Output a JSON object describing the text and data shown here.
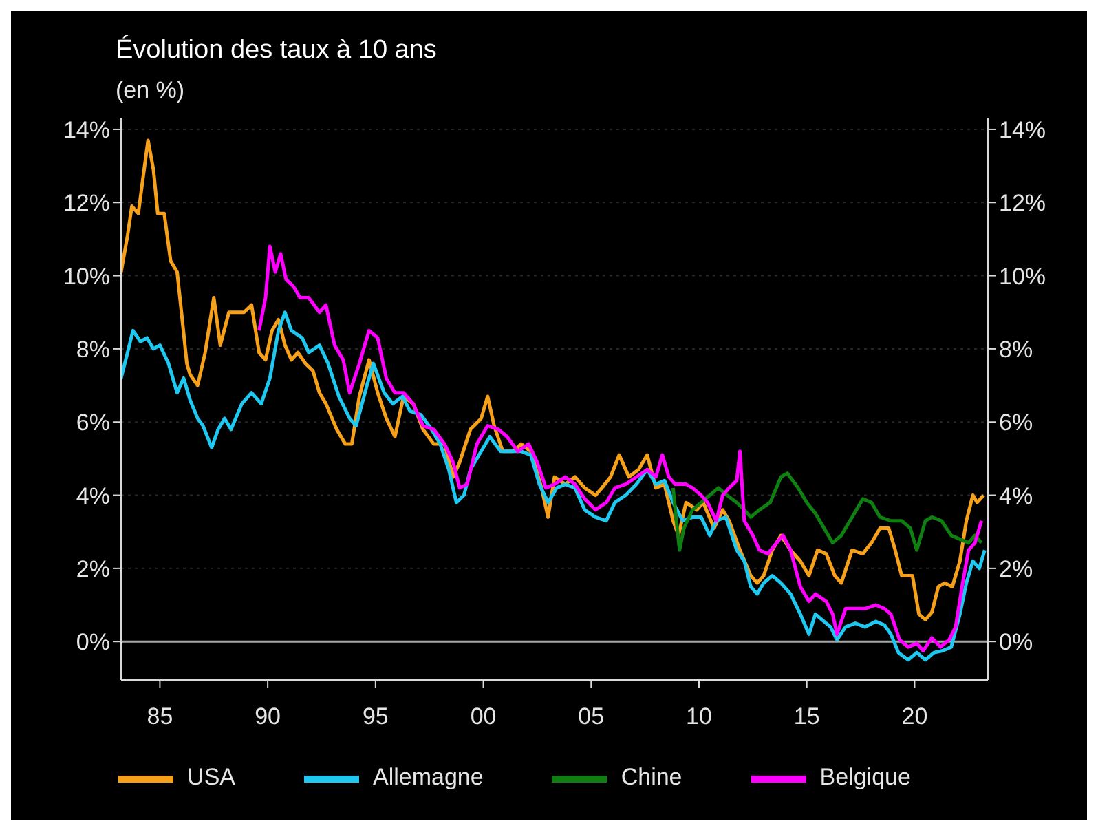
{
  "chart_data": {
    "type": "line",
    "title": "Évolution des taux à 10 ans",
    "subtitle": "(en %)",
    "xlim": [
      1983.2,
      2023.4
    ],
    "xticks": [
      {
        "value": 1985,
        "label": "85"
      },
      {
        "value": 1990,
        "label": "90"
      },
      {
        "value": 1995,
        "label": "95"
      },
      {
        "value": 2000,
        "label": "00"
      },
      {
        "value": 2005,
        "label": "05"
      },
      {
        "value": 2010,
        "label": "10"
      },
      {
        "value": 2015,
        "label": "15"
      },
      {
        "value": 2020,
        "label": "20"
      }
    ],
    "ylim": [
      -1.05,
      14.3
    ],
    "yticks": [
      {
        "value": 0,
        "label": "0%"
      },
      {
        "value": 2,
        "label": "2%"
      },
      {
        "value": 4,
        "label": "4%"
      },
      {
        "value": 6,
        "label": "6%"
      },
      {
        "value": 8,
        "label": "8%"
      },
      {
        "value": 10,
        "label": "10%"
      },
      {
        "value": 12,
        "label": "12%"
      },
      {
        "value": 14,
        "label": "14%"
      }
    ],
    "y2lim": [
      -1.05,
      14.3
    ],
    "y2ticks": [
      {
        "value": 0,
        "label": "0%"
      },
      {
        "value": 2,
        "label": "2%"
      },
      {
        "value": 4,
        "label": "4%"
      },
      {
        "value": 6,
        "label": "6%"
      },
      {
        "value": 8,
        "label": "8%"
      },
      {
        "value": 10,
        "label": "10%"
      },
      {
        "value": 12,
        "label": "12%"
      },
      {
        "value": 14,
        "label": "14%"
      }
    ],
    "grid": "y",
    "legend": "bottom",
    "marker": "none",
    "line_style": "solid",
    "ref_lines": [
      {
        "axis": "y",
        "value": 0,
        "color": "#a6a6a6"
      }
    ],
    "series": [
      {
        "name": "USA",
        "color": "#f7a11a",
        "x": [
          1983.2,
          1983.5,
          1983.7,
          1984.0,
          1984.2,
          1984.45,
          1984.7,
          1984.9,
          1985.2,
          1985.5,
          1985.8,
          1986.0,
          1986.25,
          1986.4,
          1986.75,
          1987.1,
          1987.5,
          1987.8,
          1988.2,
          1988.6,
          1988.9,
          1989.25,
          1989.6,
          1989.9,
          1990.2,
          1990.5,
          1990.8,
          1991.1,
          1991.4,
          1991.75,
          1992.1,
          1992.4,
          1992.7,
          1993.2,
          1993.6,
          1993.9,
          1994.25,
          1994.7,
          1995.1,
          1995.5,
          1995.9,
          1996.3,
          1996.75,
          1997.2,
          1997.7,
          1998.2,
          1998.6,
          1998.9,
          1999.4,
          1999.9,
          2000.2,
          2000.5,
          2000.9,
          2001.4,
          2001.75,
          2002.2,
          2002.7,
          2003.0,
          2003.3,
          2003.8,
          2004.25,
          2004.7,
          2005.2,
          2005.5,
          2005.9,
          2006.3,
          2006.75,
          2007.2,
          2007.6,
          2008.0,
          2008.4,
          2008.8,
          2009.05,
          2009.4,
          2009.9,
          2010.2,
          2010.7,
          2011.1,
          2011.4,
          2011.9,
          2012.4,
          2012.7,
          2013.0,
          2013.4,
          2013.8,
          2014.25,
          2014.7,
          2015.1,
          2015.5,
          2015.9,
          2016.3,
          2016.6,
          2017.1,
          2017.6,
          2018.0,
          2018.4,
          2018.8,
          2019.1,
          2019.4,
          2019.9,
          2020.2,
          2020.5,
          2020.8,
          2021.1,
          2021.4,
          2021.75,
          2022.1,
          2022.4,
          2022.7,
          2022.9,
          2023.2
        ],
        "values": [
          10.1,
          11.1,
          11.9,
          11.7,
          12.6,
          13.7,
          12.9,
          11.7,
          11.7,
          10.4,
          10.1,
          9.0,
          7.6,
          7.3,
          7.0,
          7.9,
          9.4,
          8.1,
          9.0,
          9.0,
          9.0,
          9.2,
          7.9,
          7.7,
          8.5,
          8.8,
          8.1,
          7.7,
          7.9,
          7.6,
          7.4,
          6.8,
          6.5,
          5.8,
          5.4,
          5.4,
          6.7,
          7.7,
          6.8,
          6.1,
          5.6,
          6.7,
          6.5,
          5.8,
          5.4,
          5.4,
          4.5,
          4.9,
          5.8,
          6.1,
          6.7,
          5.9,
          5.2,
          5.2,
          5.4,
          5.2,
          4.2,
          3.4,
          4.5,
          4.3,
          4.5,
          4.2,
          4.0,
          4.2,
          4.5,
          5.1,
          4.5,
          4.7,
          5.1,
          4.2,
          4.3,
          3.3,
          2.9,
          3.8,
          3.6,
          3.8,
          3.1,
          3.6,
          3.3,
          2.5,
          1.8,
          1.6,
          1.8,
          2.5,
          2.9,
          2.5,
          2.2,
          1.8,
          2.5,
          2.4,
          1.8,
          1.6,
          2.5,
          2.4,
          2.7,
          3.1,
          3.1,
          2.5,
          1.8,
          1.8,
          0.75,
          0.6,
          0.8,
          1.5,
          1.6,
          1.5,
          2.2,
          3.3,
          4.0,
          3.8,
          4.0
        ]
      },
      {
        "name": "Allemagne",
        "color": "#1fc8f0",
        "x": [
          1983.2,
          1983.5,
          1983.75,
          1984.1,
          1984.4,
          1984.7,
          1985.0,
          1985.4,
          1985.8,
          1986.1,
          1986.4,
          1986.75,
          1987.0,
          1987.4,
          1987.7,
          1988.0,
          1988.3,
          1988.8,
          1989.25,
          1989.7,
          1990.1,
          1990.5,
          1990.8,
          1991.1,
          1991.6,
          1991.9,
          1992.4,
          1992.8,
          1993.3,
          1993.8,
          1994.1,
          1994.6,
          1994.9,
          1995.4,
          1995.8,
          1996.25,
          1996.6,
          1997.1,
          1997.6,
          1998.0,
          1998.4,
          1998.75,
          1999.1,
          1999.4,
          1999.9,
          2000.3,
          2000.8,
          2001.3,
          2001.75,
          2002.2,
          2002.6,
          2003.0,
          2003.4,
          2003.8,
          2004.25,
          2004.7,
          2005.2,
          2005.7,
          2006.1,
          2006.6,
          2007.1,
          2007.6,
          2008.0,
          2008.4,
          2008.8,
          2009.25,
          2009.7,
          2010.1,
          2010.5,
          2010.8,
          2011.25,
          2011.75,
          2012.1,
          2012.4,
          2012.7,
          2013.0,
          2013.4,
          2013.8,
          2014.25,
          2014.7,
          2015.1,
          2015.4,
          2015.7,
          2016.1,
          2016.4,
          2016.8,
          2017.25,
          2017.7,
          2018.2,
          2018.6,
          2018.9,
          2019.25,
          2019.7,
          2020.1,
          2020.5,
          2020.9,
          2021.3,
          2021.7,
          2022.1,
          2022.4,
          2022.7,
          2023.0,
          2023.25
        ],
        "values": [
          7.2,
          7.9,
          8.5,
          8.2,
          8.3,
          8.0,
          8.1,
          7.6,
          6.8,
          7.2,
          6.6,
          6.1,
          5.9,
          5.3,
          5.8,
          6.1,
          5.8,
          6.5,
          6.8,
          6.5,
          7.2,
          8.5,
          9.0,
          8.5,
          8.3,
          7.9,
          8.1,
          7.6,
          6.7,
          6.1,
          5.9,
          7.0,
          7.6,
          6.8,
          6.5,
          6.7,
          6.3,
          6.2,
          5.8,
          5.4,
          4.7,
          3.8,
          4.0,
          4.7,
          5.2,
          5.6,
          5.2,
          5.2,
          5.2,
          5.1,
          4.3,
          3.8,
          4.2,
          4.3,
          4.2,
          3.6,
          3.4,
          3.3,
          3.8,
          4.0,
          4.3,
          4.7,
          4.3,
          4.4,
          3.8,
          3.3,
          3.4,
          3.4,
          2.9,
          3.3,
          3.4,
          2.5,
          2.2,
          1.5,
          1.3,
          1.6,
          1.8,
          1.6,
          1.3,
          0.75,
          0.2,
          0.75,
          0.6,
          0.4,
          0.05,
          0.4,
          0.5,
          0.4,
          0.55,
          0.45,
          0.2,
          -0.3,
          -0.5,
          -0.3,
          -0.5,
          -0.3,
          -0.25,
          -0.15,
          0.75,
          1.6,
          2.2,
          2.0,
          2.5
        ]
      },
      {
        "name": "Chine",
        "color": "#0f7f12",
        "x": [
          2008.8,
          2008.95,
          2009.1,
          2009.3,
          2009.7,
          2010.1,
          2010.5,
          2010.9,
          2011.3,
          2011.75,
          2012.1,
          2012.4,
          2012.8,
          2013.3,
          2013.8,
          2014.1,
          2014.6,
          2015.0,
          2015.4,
          2015.8,
          2016.2,
          2016.6,
          2017.1,
          2017.6,
          2018.0,
          2018.4,
          2018.9,
          2019.4,
          2019.8,
          2020.1,
          2020.5,
          2020.8,
          2021.25,
          2021.7,
          2022.1,
          2022.5,
          2022.8,
          2023.1
        ],
        "values": [
          4.2,
          3.3,
          2.5,
          3.1,
          3.6,
          3.8,
          4.0,
          4.2,
          4.0,
          3.8,
          3.6,
          3.4,
          3.6,
          3.8,
          4.5,
          4.6,
          4.2,
          3.8,
          3.5,
          3.1,
          2.7,
          2.9,
          3.4,
          3.9,
          3.8,
          3.4,
          3.3,
          3.3,
          3.1,
          2.5,
          3.3,
          3.4,
          3.3,
          2.9,
          2.8,
          2.7,
          2.9,
          2.7
        ]
      },
      {
        "name": "Belgique",
        "color": "#ff00ff",
        "x": [
          1989.6,
          1989.9,
          1990.1,
          1990.35,
          1990.6,
          1990.85,
          1991.2,
          1991.5,
          1991.9,
          1992.4,
          1992.7,
          1993.1,
          1993.5,
          1993.8,
          1994.25,
          1994.7,
          1995.1,
          1995.5,
          1995.9,
          1996.3,
          1996.75,
          1997.2,
          1997.7,
          1998.2,
          1998.6,
          1998.9,
          1999.25,
          1999.7,
          2000.2,
          2000.7,
          2001.1,
          2001.6,
          2002.1,
          2002.5,
          2002.9,
          2003.3,
          2003.8,
          2004.25,
          2004.7,
          2005.2,
          2005.7,
          2006.1,
          2006.6,
          2007.1,
          2007.6,
          2008.0,
          2008.3,
          2008.6,
          2008.9,
          2009.4,
          2009.7,
          2010.1,
          2010.4,
          2010.8,
          2011.1,
          2011.4,
          2011.75,
          2011.9,
          2012.1,
          2012.5,
          2012.8,
          2013.2,
          2013.6,
          2013.9,
          2014.25,
          2014.7,
          2015.1,
          2015.4,
          2015.9,
          2016.2,
          2016.4,
          2016.8,
          2017.25,
          2017.7,
          2018.2,
          2018.6,
          2018.9,
          2019.3,
          2019.7,
          2020.1,
          2020.4,
          2020.8,
          2021.2,
          2021.6,
          2021.9,
          2022.2,
          2022.5,
          2022.8,
          2023.1
        ],
        "values": [
          8.5,
          9.4,
          10.8,
          10.1,
          10.6,
          9.9,
          9.7,
          9.4,
          9.4,
          9.0,
          9.2,
          8.1,
          7.7,
          6.8,
          7.6,
          8.5,
          8.3,
          7.2,
          6.8,
          6.8,
          6.5,
          5.9,
          5.8,
          5.4,
          4.9,
          4.2,
          4.3,
          5.4,
          5.9,
          5.8,
          5.6,
          5.2,
          5.4,
          4.9,
          4.2,
          4.3,
          4.5,
          4.3,
          3.9,
          3.6,
          3.8,
          4.2,
          4.3,
          4.5,
          4.7,
          4.5,
          5.1,
          4.5,
          4.3,
          4.3,
          4.2,
          4.0,
          3.8,
          3.3,
          4.0,
          4.2,
          4.4,
          5.2,
          3.3,
          2.9,
          2.5,
          2.4,
          2.7,
          2.9,
          2.5,
          1.5,
          1.1,
          1.3,
          1.1,
          0.75,
          0.2,
          0.9,
          0.9,
          0.9,
          1.0,
          0.9,
          0.75,
          0.05,
          -0.15,
          -0.05,
          -0.25,
          0.1,
          -0.15,
          0.05,
          0.4,
          1.5,
          2.5,
          2.7,
          3.3
        ]
      }
    ]
  }
}
